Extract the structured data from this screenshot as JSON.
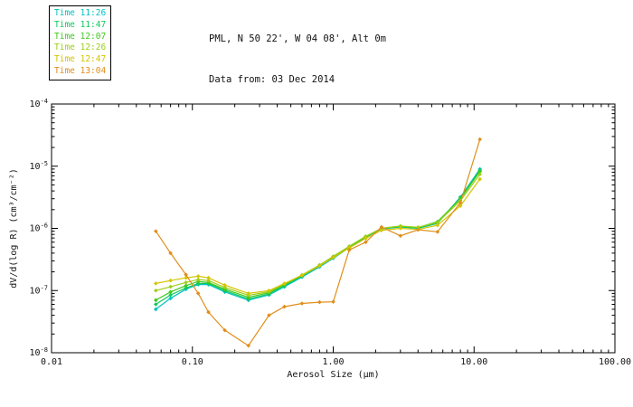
{
  "header": {
    "title": "PML, N 50 22', W 04 08', Alt 0m",
    "subtitle": "Data from: 03 Dec 2014"
  },
  "chart_data": {
    "type": "line",
    "title": "PML, N 50 22', W 04 08', Alt 0m",
    "subtitle": "Data from: 03 Dec 2014",
    "x_scale": "log",
    "y_scale": "log",
    "xlim": [
      0.01,
      100.0
    ],
    "ylim": [
      1e-08,
      0.0001
    ],
    "xlabel": "Aerosol Size (μm)",
    "ylabel": "dV/d(log R) (cm³/cm⁻²)",
    "grid": false,
    "legend_position": "top-left",
    "x_ticks": [
      {
        "v": 0.01,
        "label": "0.01"
      },
      {
        "v": 0.1,
        "label": "0.10"
      },
      {
        "v": 1.0,
        "label": "1.00"
      },
      {
        "v": 10.0,
        "label": "10.00"
      },
      {
        "v": 100.0,
        "label": "100.00"
      }
    ],
    "y_ticks": [
      {
        "v": 1e-08,
        "exp": "-8"
      },
      {
        "v": 1e-07,
        "exp": "-7"
      },
      {
        "v": 1e-06,
        "exp": "-6"
      },
      {
        "v": 1e-05,
        "exp": "-5"
      },
      {
        "v": 0.0001,
        "exp": "-4"
      }
    ],
    "x": [
      0.055,
      0.07,
      0.09,
      0.11,
      0.13,
      0.17,
      0.25,
      0.35,
      0.45,
      0.6,
      0.8,
      1.0,
      1.3,
      1.7,
      2.2,
      3.0,
      4.0,
      5.5,
      8.0,
      11.0
    ],
    "series": [
      {
        "name": "Time 11:26",
        "color": "#00C2C2",
        "values": [
          5e-08,
          7.5e-08,
          1.05e-07,
          1.25e-07,
          1.25e-07,
          9.5e-08,
          7e-08,
          8.5e-08,
          1.15e-07,
          1.65e-07,
          2.4e-07,
          3.3e-07,
          4.9e-07,
          7.2e-07,
          9.8e-07,
          1.05e-06,
          1e-06,
          1.2e-06,
          3.2e-06,
          9e-06
        ]
      },
      {
        "name": "Time 11:47",
        "color": "#0FC95C",
        "values": [
          6e-08,
          8.5e-08,
          1.1e-07,
          1.3e-07,
          1.3e-07,
          1e-07,
          7.3e-08,
          8.8e-08,
          1.2e-07,
          1.7e-07,
          2.5e-07,
          3.4e-07,
          5e-07,
          7.3e-07,
          9.9e-07,
          1.06e-06,
          1.01e-06,
          1.22e-06,
          3.1e-06,
          8.6e-06
        ]
      },
      {
        "name": "Time 12:07",
        "color": "#3FC81E",
        "values": [
          7e-08,
          9.5e-08,
          1.2e-07,
          1.4e-07,
          1.35e-07,
          1.05e-07,
          7.8e-08,
          9.2e-08,
          1.25e-07,
          1.75e-07,
          2.55e-07,
          3.5e-07,
          5.1e-07,
          7.4e-07,
          1e-06,
          1.08e-06,
          1.03e-06,
          1.28e-06,
          3e-06,
          8.2e-06
        ]
      },
      {
        "name": "Time 12:26",
        "color": "#9CCF17",
        "values": [
          1e-07,
          1.15e-07,
          1.35e-07,
          1.5e-07,
          1.45e-07,
          1.12e-07,
          8.4e-08,
          9.6e-08,
          1.28e-07,
          1.78e-07,
          2.58e-07,
          3.55e-07,
          5.15e-07,
          7.45e-07,
          1e-06,
          1.09e-06,
          1.04e-06,
          1.24e-06,
          2.8e-06,
          7.4e-06
        ]
      },
      {
        "name": "Time 12:47",
        "color": "#D5C400",
        "values": [
          1.3e-07,
          1.45e-07,
          1.6e-07,
          1.7e-07,
          1.6e-07,
          1.22e-07,
          9e-08,
          1e-07,
          1.3e-07,
          1.75e-07,
          2.5e-07,
          3.4e-07,
          4.85e-07,
          6.9e-07,
          9.3e-07,
          1e-06,
          9.6e-07,
          1.12e-06,
          2.3e-06,
          6.2e-06
        ]
      },
      {
        "name": "Time 13:04",
        "color": "#E08E1A",
        "values": [
          9e-07,
          4e-07,
          1.8e-07,
          9e-08,
          4.5e-08,
          2.3e-08,
          1.3e-08,
          4e-08,
          5.5e-08,
          6.2e-08,
          6.5e-08,
          6.6e-08,
          4.5e-07,
          6e-07,
          1.05e-06,
          7.6e-07,
          9.5e-07,
          8.8e-07,
          2.6e-06,
          2.7e-05
        ]
      }
    ]
  }
}
